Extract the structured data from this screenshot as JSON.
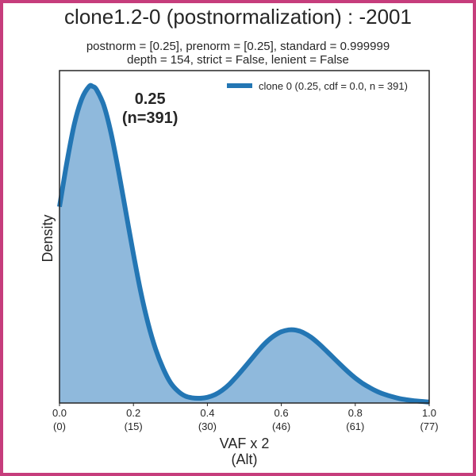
{
  "colors": {
    "border": "#c63d7c",
    "line": "#2376b4",
    "fill": "#8fb9dc",
    "text": "#262626"
  },
  "title": "clone1.2-0 (postnormalization) : -2001",
  "subtitle_lines": [
    "postnorm = [0.25], prenorm = [0.25], standard = 0.999999",
    "depth = 154, strict = False, lenient = False"
  ],
  "chart_data": {
    "type": "area",
    "title": "clone1.2-0 (postnormalization) : -2001",
    "xlabel": "VAF x 2",
    "xlabel2": "(Alt)",
    "ylabel": "Density",
    "xlim": [
      0.0,
      1.0
    ],
    "ylim": [
      0,
      1.05
    ],
    "grid": false,
    "legend_position": "top-right",
    "x_ticks": [
      {
        "value": 0.0,
        "label": "0.0",
        "sublabel": "(0)"
      },
      {
        "value": 0.2,
        "label": "0.2",
        "sublabel": "(15)"
      },
      {
        "value": 0.4,
        "label": "0.4",
        "sublabel": "(30)"
      },
      {
        "value": 0.6,
        "label": "0.6",
        "sublabel": "(46)"
      },
      {
        "value": 0.8,
        "label": "0.8",
        "sublabel": "(61)"
      },
      {
        "value": 1.0,
        "label": "1.0",
        "sublabel": "(77)"
      }
    ],
    "series": [
      {
        "name": "clone 0 (0.25, cdf = 0.0, n = 391)",
        "x": [
          0.0,
          0.02,
          0.04,
          0.06,
          0.08,
          0.09,
          0.1,
          0.12,
          0.14,
          0.16,
          0.18,
          0.2,
          0.22,
          0.24,
          0.26,
          0.28,
          0.3,
          0.32,
          0.34,
          0.36,
          0.38,
          0.4,
          0.42,
          0.44,
          0.46,
          0.48,
          0.5,
          0.52,
          0.54,
          0.56,
          0.58,
          0.6,
          0.62,
          0.64,
          0.66,
          0.68,
          0.7,
          0.72,
          0.74,
          0.76,
          0.78,
          0.8,
          0.82,
          0.84,
          0.86,
          0.88,
          0.9,
          0.92,
          0.94,
          0.96,
          0.98,
          1.0
        ],
        "y": [
          0.62,
          0.76,
          0.88,
          0.96,
          1.0,
          1.0,
          0.99,
          0.94,
          0.85,
          0.73,
          0.6,
          0.47,
          0.35,
          0.25,
          0.17,
          0.11,
          0.065,
          0.038,
          0.022,
          0.016,
          0.015,
          0.018,
          0.026,
          0.04,
          0.06,
          0.085,
          0.112,
          0.14,
          0.168,
          0.193,
          0.212,
          0.225,
          0.231,
          0.23,
          0.222,
          0.208,
          0.189,
          0.167,
          0.144,
          0.121,
          0.099,
          0.079,
          0.062,
          0.048,
          0.036,
          0.027,
          0.02,
          0.014,
          0.01,
          0.007,
          0.005,
          0.003
        ]
      }
    ],
    "annotations": [
      {
        "x": 0.245,
        "y": 0.965,
        "line1": "0.25",
        "line2": "(n=391)"
      }
    ]
  }
}
